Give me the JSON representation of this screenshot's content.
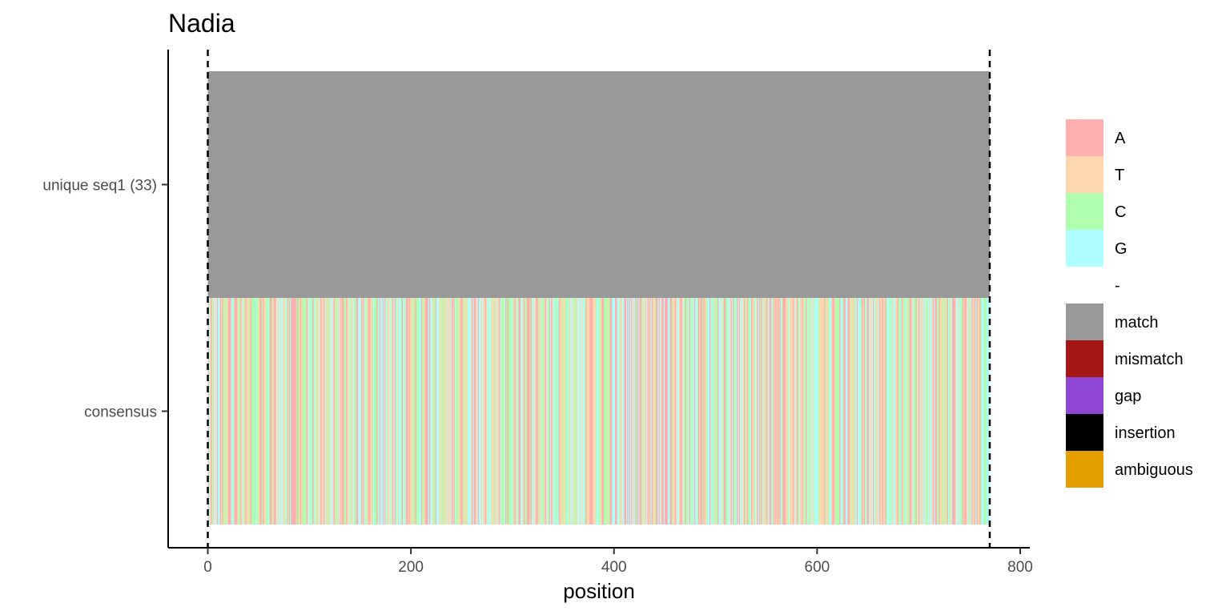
{
  "chart_data": {
    "type": "heatmap",
    "title": "Nadia",
    "xlabel": "position",
    "ylabel": "",
    "xlim": [
      -40,
      810
    ],
    "x_ticks": [
      0,
      200,
      400,
      600,
      800
    ],
    "x_tick_labels": [
      "0",
      "200",
      "400",
      "600",
      "800"
    ],
    "rows": [
      "unique seq1 (33)",
      "consensus"
    ],
    "sequence_start": 1,
    "sequence_end": 770,
    "reference_lines": [
      1,
      770
    ],
    "row_tracks": [
      {
        "row": "unique seq1 (33)",
        "state": "match",
        "from": 1,
        "to": 770
      },
      {
        "row": "consensus",
        "state": "per-base nucleotide (A/T/C/G)",
        "from": 1,
        "to": 770
      }
    ],
    "legend": {
      "placement": "right",
      "items": [
        {
          "label": "A",
          "color": "#FFAFAF"
        },
        {
          "label": "T",
          "color": "#FFD7AF"
        },
        {
          "label": "C",
          "color": "#AFFFAF"
        },
        {
          "label": "G",
          "color": "#AFFFFF"
        },
        {
          "label": "-",
          "color": "#FFFFFF"
        },
        {
          "label": "match",
          "color": "#999999"
        },
        {
          "label": "mismatch",
          "color": "#A51616"
        },
        {
          "label": "gap",
          "color": "#8F46D2"
        },
        {
          "label": "insertion",
          "color": "#000000"
        },
        {
          "label": "ambiguous",
          "color": "#E69F00"
        }
      ]
    },
    "grid": false
  }
}
